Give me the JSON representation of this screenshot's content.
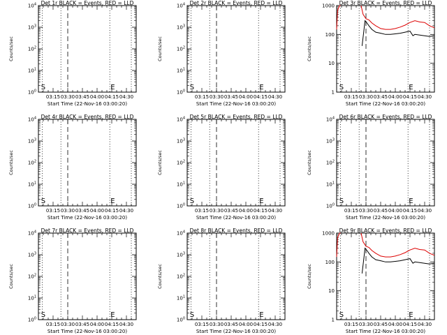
{
  "figure": {
    "background": "#ffffff",
    "event_color": "#000000",
    "lld_color": "#dd0000"
  },
  "chart_data": [
    {
      "type": "line",
      "title": "Det 1r BLACK = Events, RED = LLD",
      "xlabel": "Start Time (22-Nov-16 03:00:20)",
      "ylabel": "Counts/sec",
      "x_tick_labels": [
        "03:15",
        "03:30",
        "03:45",
        "04:00",
        "04:15",
        "04:30"
      ],
      "x_tick_minutes": [
        15,
        30,
        45,
        60,
        75,
        90
      ],
      "xlim_minutes": [
        0,
        100
      ],
      "y_scale": "log",
      "ylim": [
        1,
        10000
      ],
      "y_tick_labels": [
        "10^0",
        "10^1",
        "10^2",
        "10^3",
        "10^4"
      ],
      "vlines": [
        {
          "x_minutes": 4,
          "style": "dotted"
        },
        {
          "x_minutes": 23,
          "style": "dotted"
        },
        {
          "x_minutes": 30,
          "style": "dashed"
        },
        {
          "x_minutes": 73,
          "style": "dotted"
        },
        {
          "x_minutes": 95,
          "style": "dotted"
        }
      ],
      "markers": [
        {
          "label": "S",
          "x_minutes": 2
        },
        {
          "label": "E",
          "x_minutes": 73
        }
      ],
      "series": []
    },
    {
      "type": "line",
      "title": "Det 2r BLACK = Events, RED = LLD",
      "xlabel": "Start Time (22-Nov-16 03:00:20)",
      "ylabel": "Counts/sec",
      "x_tick_labels": [
        "03:15",
        "03:30",
        "03:45",
        "04:00",
        "04:15",
        "04:30"
      ],
      "x_tick_minutes": [
        15,
        30,
        45,
        60,
        75,
        90
      ],
      "xlim_minutes": [
        0,
        100
      ],
      "y_scale": "log",
      "ylim": [
        1,
        10000
      ],
      "y_tick_labels": [
        "10^0",
        "10^1",
        "10^2",
        "10^3",
        "10^4"
      ],
      "vlines": [
        {
          "x_minutes": 4,
          "style": "dotted"
        },
        {
          "x_minutes": 23,
          "style": "dotted"
        },
        {
          "x_minutes": 30,
          "style": "dashed"
        },
        {
          "x_minutes": 73,
          "style": "dotted"
        },
        {
          "x_minutes": 95,
          "style": "dotted"
        }
      ],
      "markers": [
        {
          "label": "S",
          "x_minutes": 2
        },
        {
          "label": "E",
          "x_minutes": 73
        }
      ],
      "series": []
    },
    {
      "type": "line",
      "title": "Det 3r BLACK = Events, RED = LLD",
      "xlabel": "Start Time (22-Nov-16 03:00:20)",
      "ylabel": "Counts/sec",
      "x_tick_labels": [
        "03:15",
        "03:30",
        "03:45",
        "04:00",
        "04:15",
        "04:30"
      ],
      "x_tick_minutes": [
        15,
        30,
        45,
        60,
        75,
        90
      ],
      "xlim_minutes": [
        0,
        100
      ],
      "y_scale": "log",
      "ylim": [
        1,
        1000
      ],
      "y_tick_labels": [
        "1",
        "10",
        "100",
        "1000"
      ],
      "vlines": [
        {
          "x_minutes": 4,
          "style": "dotted"
        },
        {
          "x_minutes": 23,
          "style": "dotted"
        },
        {
          "x_minutes": 30,
          "style": "dashed"
        },
        {
          "x_minutes": 73,
          "style": "dotted"
        },
        {
          "x_minutes": 95,
          "style": "dotted"
        }
      ],
      "markers": [
        {
          "label": "S",
          "x_minutes": 2
        },
        {
          "label": "E",
          "x_minutes": 73
        }
      ],
      "series": [
        {
          "color": "#dd0000",
          "segments": [
            {
              "x": [
                0,
                1,
                3,
                4
              ],
              "y": [
                150,
                700,
                1200,
                1200
              ]
            },
            {
              "x": [
                25,
                27,
                30,
                33,
                36,
                40,
                45,
                50,
                55,
                60,
                65,
                70,
                75,
                80,
                85,
                90,
                95,
                100
              ],
              "y": [
                1200,
                500,
                350,
                320,
                250,
                200,
                160,
                150,
                150,
                160,
                180,
                210,
                260,
                300,
                270,
                260,
                200,
                170
              ]
            }
          ]
        },
        {
          "color": "#000000",
          "segments": [
            {
              "x": [
                26,
                28,
                29,
                31,
                33,
                36,
                40,
                45,
                50,
                55,
                60,
                65,
                70,
                75,
                78,
                80,
                85,
                90,
                95,
                100
              ],
              "y": [
                40,
                150,
                300,
                250,
                200,
                150,
                120,
                110,
                100,
                100,
                105,
                110,
                120,
                130,
                90,
                100,
                95,
                90,
                85,
                90
              ]
            }
          ]
        }
      ]
    },
    {
      "type": "line",
      "title": "Det 4r BLACK = Events, RED = LLD",
      "xlabel": "Start Time (22-Nov-16 03:00:20)",
      "ylabel": "Counts/sec",
      "x_tick_labels": [
        "03:15",
        "03:30",
        "03:45",
        "04:00",
        "04:15",
        "04:30"
      ],
      "x_tick_minutes": [
        15,
        30,
        45,
        60,
        75,
        90
      ],
      "xlim_minutes": [
        0,
        100
      ],
      "y_scale": "log",
      "ylim": [
        1,
        10000
      ],
      "y_tick_labels": [
        "10^0",
        "10^1",
        "10^2",
        "10^3",
        "10^4"
      ],
      "vlines": [
        {
          "x_minutes": 4,
          "style": "dotted"
        },
        {
          "x_minutes": 23,
          "style": "dotted"
        },
        {
          "x_minutes": 30,
          "style": "dashed"
        },
        {
          "x_minutes": 73,
          "style": "dotted"
        },
        {
          "x_minutes": 95,
          "style": "dotted"
        }
      ],
      "markers": [
        {
          "label": "S",
          "x_minutes": 2
        },
        {
          "label": "E",
          "x_minutes": 73
        }
      ],
      "series": []
    },
    {
      "type": "line",
      "title": "Det 5r BLACK = Events, RED = LLD",
      "xlabel": "Start Time (22-Nov-16 03:00:20)",
      "ylabel": "Counts/sec",
      "x_tick_labels": [
        "03:15",
        "03:30",
        "03:45",
        "04:00",
        "04:15",
        "04:30"
      ],
      "x_tick_minutes": [
        15,
        30,
        45,
        60,
        75,
        90
      ],
      "xlim_minutes": [
        0,
        100
      ],
      "y_scale": "log",
      "ylim": [
        1,
        10000
      ],
      "y_tick_labels": [
        "10^0",
        "10^1",
        "10^2",
        "10^3",
        "10^4"
      ],
      "vlines": [
        {
          "x_minutes": 4,
          "style": "dotted"
        },
        {
          "x_minutes": 23,
          "style": "dotted"
        },
        {
          "x_minutes": 30,
          "style": "dashed"
        },
        {
          "x_minutes": 73,
          "style": "dotted"
        },
        {
          "x_minutes": 95,
          "style": "dotted"
        }
      ],
      "markers": [
        {
          "label": "S",
          "x_minutes": 2
        },
        {
          "label": "E",
          "x_minutes": 73
        }
      ],
      "series": []
    },
    {
      "type": "line",
      "title": "Det 6r BLACK = Events, RED = LLD",
      "xlabel": "Start Time (22-Nov-16 03:00:20)",
      "ylabel": "Counts/sec",
      "x_tick_labels": [
        "03:15",
        "03:30",
        "03:45",
        "04:00",
        "04:15",
        "04:30"
      ],
      "x_tick_minutes": [
        15,
        30,
        45,
        60,
        75,
        90
      ],
      "xlim_minutes": [
        0,
        100
      ],
      "y_scale": "log",
      "ylim": [
        1,
        10000
      ],
      "y_tick_labels": [
        "10^0",
        "10^1",
        "10^2",
        "10^3",
        "10^4"
      ],
      "vlines": [
        {
          "x_minutes": 4,
          "style": "dotted"
        },
        {
          "x_minutes": 23,
          "style": "dotted"
        },
        {
          "x_minutes": 30,
          "style": "dashed"
        },
        {
          "x_minutes": 73,
          "style": "dotted"
        },
        {
          "x_minutes": 95,
          "style": "dotted"
        }
      ],
      "markers": [
        {
          "label": "S",
          "x_minutes": 2
        },
        {
          "label": "E",
          "x_minutes": 73
        }
      ],
      "series": []
    },
    {
      "type": "line",
      "title": "Det 7r BLACK = Events, RED = LLD",
      "xlabel": "Start Time (22-Nov-16 03:00:20)",
      "ylabel": "Counts/sec",
      "x_tick_labels": [
        "03:15",
        "03:30",
        "03:45",
        "04:00",
        "04:15",
        "04:30"
      ],
      "x_tick_minutes": [
        15,
        30,
        45,
        60,
        75,
        90
      ],
      "xlim_minutes": [
        0,
        100
      ],
      "y_scale": "log",
      "ylim": [
        1,
        10000
      ],
      "y_tick_labels": [
        "10^0",
        "10^1",
        "10^2",
        "10^3",
        "10^4"
      ],
      "vlines": [
        {
          "x_minutes": 4,
          "style": "dotted"
        },
        {
          "x_minutes": 23,
          "style": "dotted"
        },
        {
          "x_minutes": 30,
          "style": "dashed"
        },
        {
          "x_minutes": 73,
          "style": "dotted"
        },
        {
          "x_minutes": 95,
          "style": "dotted"
        }
      ],
      "markers": [
        {
          "label": "S",
          "x_minutes": 2
        },
        {
          "label": "E",
          "x_minutes": 73
        }
      ],
      "series": []
    },
    {
      "type": "line",
      "title": "Det 8r BLACK = Events, RED = LLD",
      "xlabel": "Start Time (22-Nov-16 03:00:20)",
      "ylabel": "Counts/sec",
      "x_tick_labels": [
        "03:15",
        "03:30",
        "03:45",
        "04:00",
        "04:15",
        "04:30"
      ],
      "x_tick_minutes": [
        15,
        30,
        45,
        60,
        75,
        90
      ],
      "xlim_minutes": [
        0,
        100
      ],
      "y_scale": "log",
      "ylim": [
        1,
        10000
      ],
      "y_tick_labels": [
        "10^0",
        "10^1",
        "10^2",
        "10^3",
        "10^4"
      ],
      "vlines": [
        {
          "x_minutes": 4,
          "style": "dotted"
        },
        {
          "x_minutes": 23,
          "style": "dotted"
        },
        {
          "x_minutes": 30,
          "style": "dashed"
        },
        {
          "x_minutes": 73,
          "style": "dotted"
        },
        {
          "x_minutes": 95,
          "style": "dotted"
        }
      ],
      "markers": [
        {
          "label": "S",
          "x_minutes": 2
        },
        {
          "label": "E",
          "x_minutes": 73
        }
      ],
      "series": []
    },
    {
      "type": "line",
      "title": "Det 9r BLACK = Events, RED = LLD",
      "xlabel": "Start Time (22-Nov-16 03:00:20)",
      "ylabel": "Counts/sec",
      "x_tick_labels": [
        "03:15",
        "03:30",
        "03:45",
        "04:00",
        "04:15",
        "04:30"
      ],
      "x_tick_minutes": [
        15,
        30,
        45,
        60,
        75,
        90
      ],
      "xlim_minutes": [
        0,
        100
      ],
      "y_scale": "log",
      "ylim": [
        1,
        1000
      ],
      "y_tick_labels": [
        "1",
        "10",
        "100",
        "1000"
      ],
      "vlines": [
        {
          "x_minutes": 4,
          "style": "dotted"
        },
        {
          "x_minutes": 23,
          "style": "dotted"
        },
        {
          "x_minutes": 30,
          "style": "dashed"
        },
        {
          "x_minutes": 73,
          "style": "dotted"
        },
        {
          "x_minutes": 95,
          "style": "dotted"
        }
      ],
      "markers": [
        {
          "label": "S",
          "x_minutes": 2
        },
        {
          "label": "E",
          "x_minutes": 73
        }
      ],
      "series": [
        {
          "color": "#dd0000",
          "segments": [
            {
              "x": [
                0,
                1,
                3,
                4
              ],
              "y": [
                150,
                700,
                1200,
                1200
              ]
            },
            {
              "x": [
                25,
                27,
                30,
                33,
                36,
                40,
                45,
                50,
                55,
                60,
                65,
                70,
                75,
                80,
                85,
                90,
                95,
                100
              ],
              "y": [
                1200,
                500,
                350,
                320,
                250,
                200,
                160,
                150,
                150,
                160,
                180,
                210,
                260,
                300,
                270,
                260,
                200,
                170
              ]
            }
          ]
        },
        {
          "color": "#000000",
          "segments": [
            {
              "x": [
                26,
                28,
                29,
                31,
                33,
                36,
                40,
                45,
                50,
                55,
                60,
                65,
                70,
                75,
                78,
                80,
                85,
                90,
                95,
                100
              ],
              "y": [
                40,
                150,
                300,
                250,
                200,
                150,
                120,
                110,
                100,
                100,
                105,
                110,
                120,
                130,
                90,
                100,
                95,
                90,
                85,
                90
              ]
            }
          ]
        }
      ]
    }
  ]
}
